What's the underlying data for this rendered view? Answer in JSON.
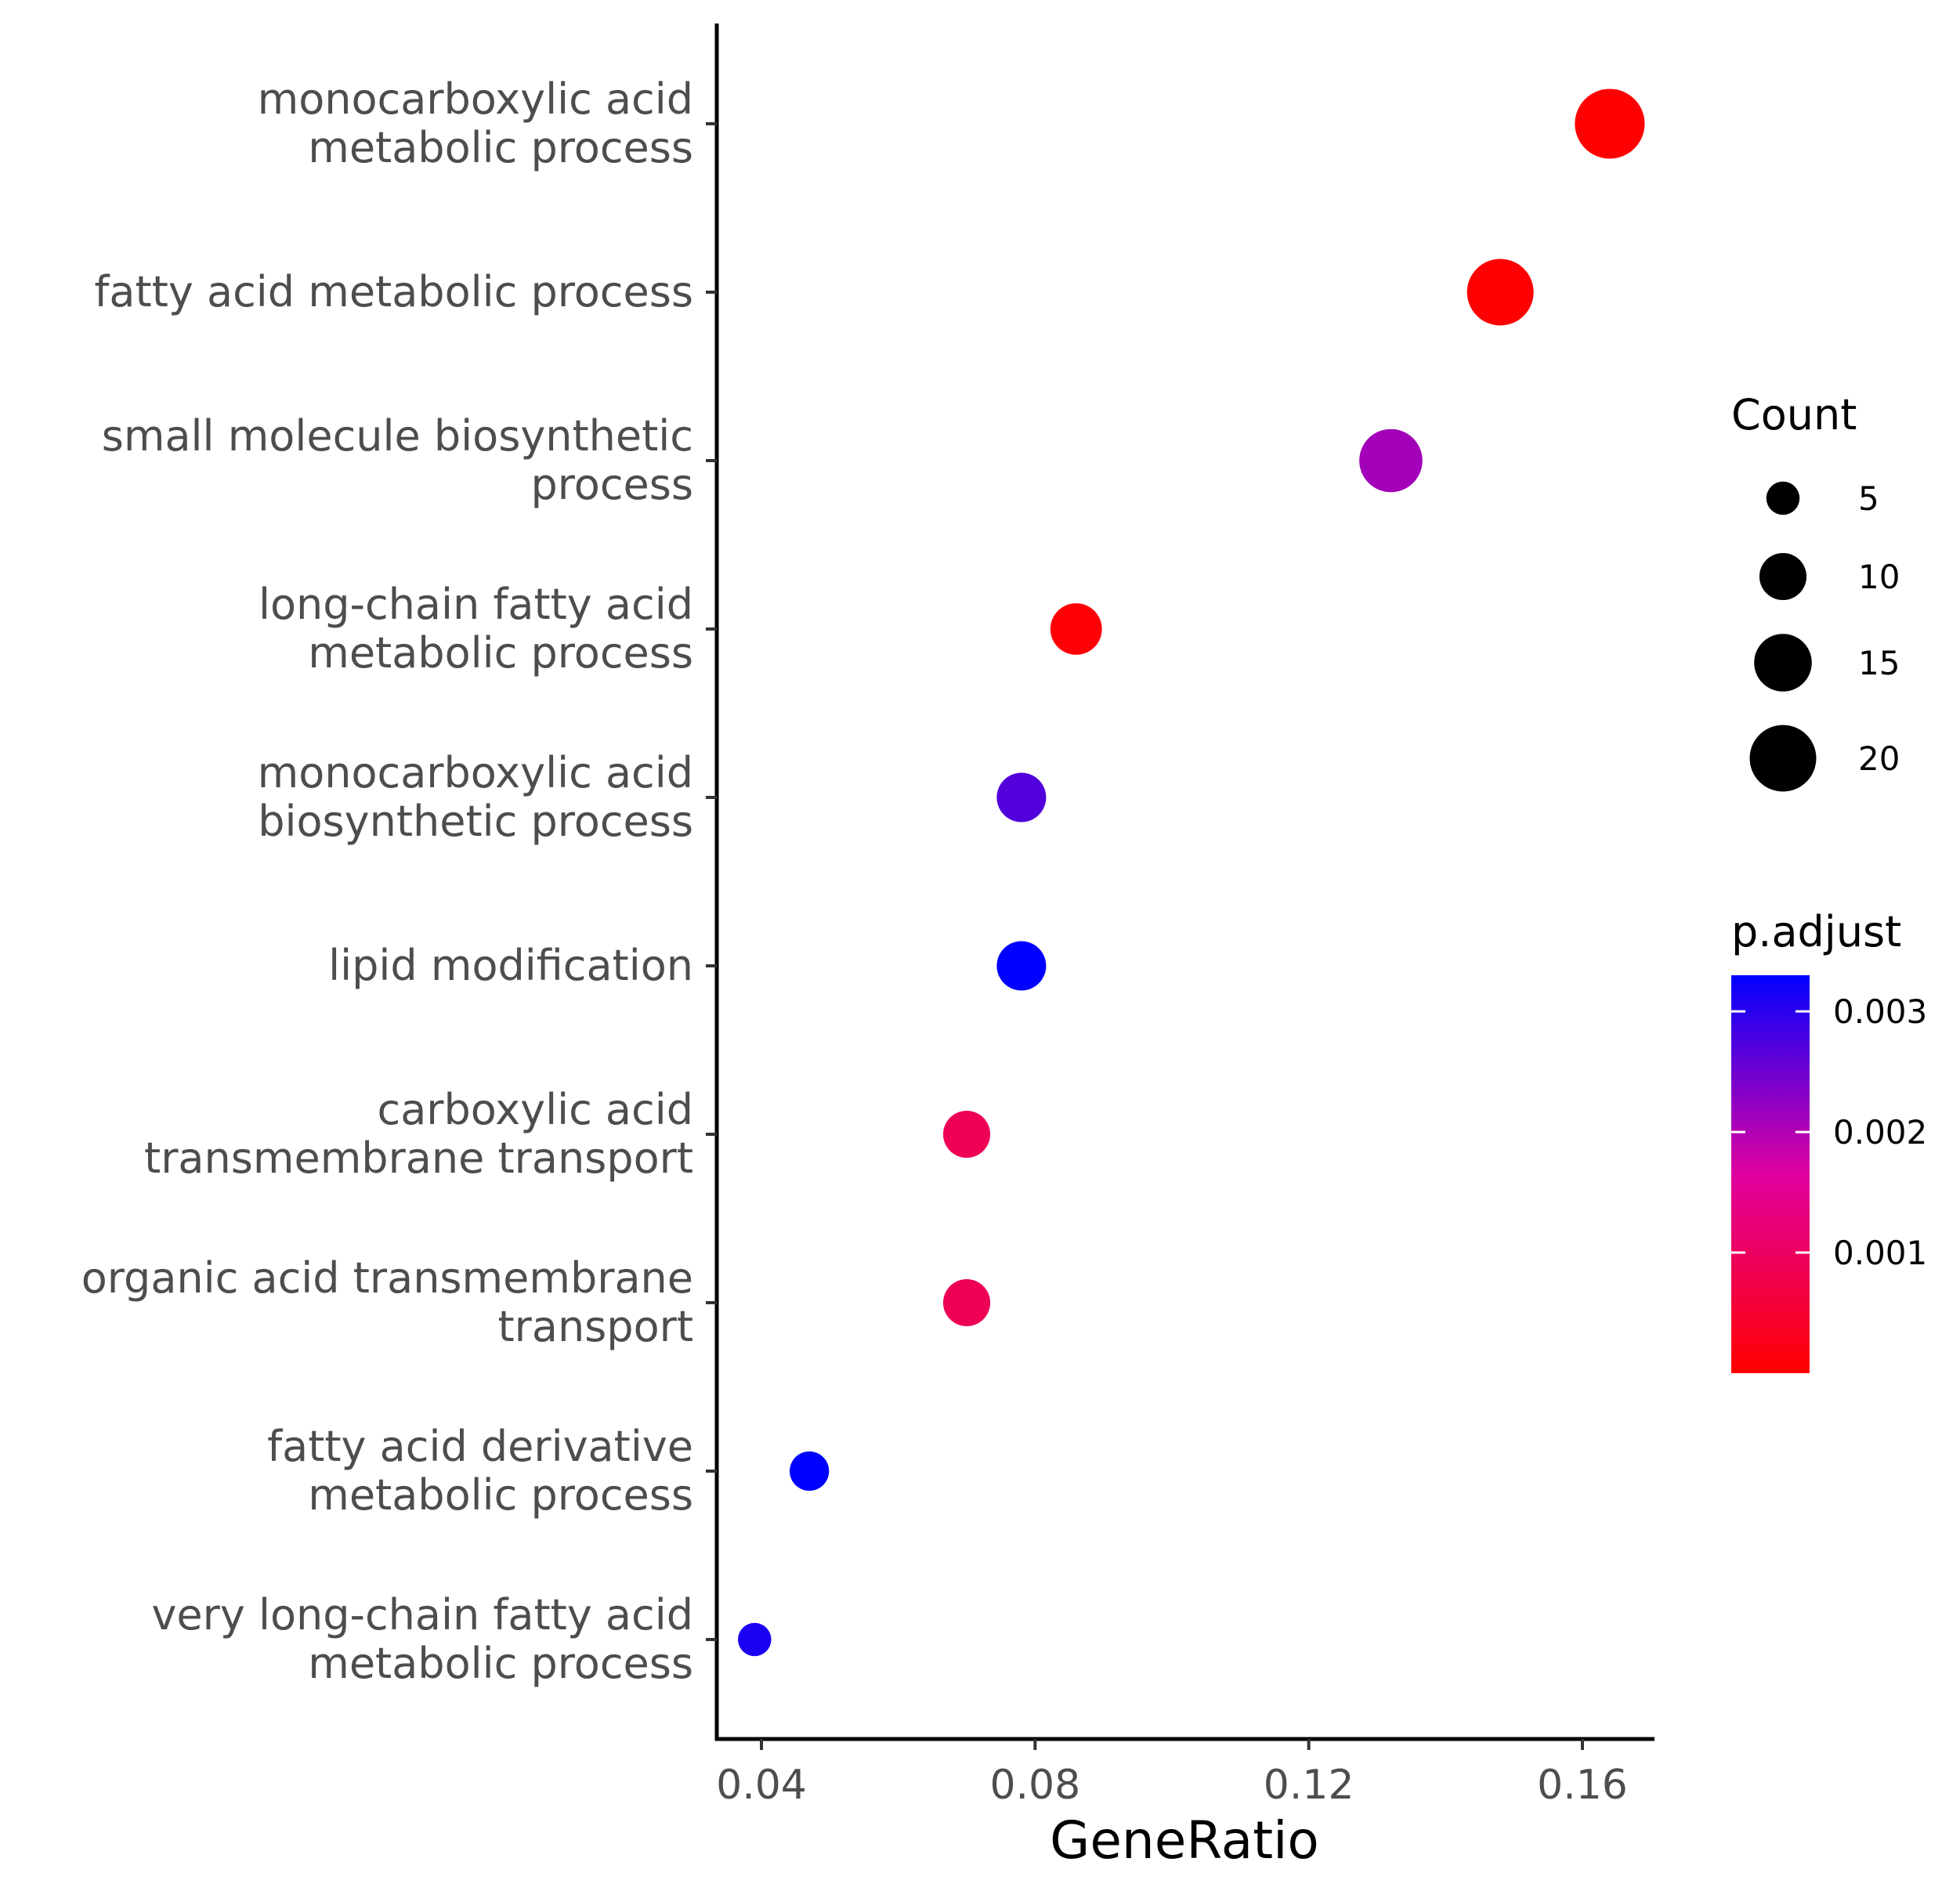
{
  "chart_data": {
    "type": "scatter",
    "xlabel": "GeneRatio",
    "xlim": [
      0.033,
      0.171
    ],
    "xticks": [
      0.04,
      0.08,
      0.12,
      0.16
    ],
    "xtick_labels": [
      "0.04",
      "0.08",
      "0.12",
      "0.16"
    ],
    "points": [
      {
        "label": "monocarboxylic acid\nmetabolic process",
        "gene_ratio": 0.164,
        "count": 22,
        "p_adjust": 2e-05
      },
      {
        "label": "fatty acid metabolic process",
        "gene_ratio": 0.148,
        "count": 20,
        "p_adjust": 2e-05
      },
      {
        "label": "small molecule biosynthetic\nprocess",
        "gene_ratio": 0.132,
        "count": 18,
        "p_adjust": 0.0021
      },
      {
        "label": "long-chain fatty acid\nmetabolic process",
        "gene_ratio": 0.086,
        "count": 12,
        "p_adjust": 5e-05
      },
      {
        "label": "monocarboxylic acid\nbiosynthetic process",
        "gene_ratio": 0.078,
        "count": 11,
        "p_adjust": 0.0027
      },
      {
        "label": "lipid modification",
        "gene_ratio": 0.078,
        "count": 11,
        "p_adjust": 0.0033
      },
      {
        "label": "carboxylic acid\ntransmembrane transport",
        "gene_ratio": 0.07,
        "count": 10,
        "p_adjust": 0.0009
      },
      {
        "label": "organic acid transmembrane\ntransport",
        "gene_ratio": 0.07,
        "count": 10,
        "p_adjust": 0.0009
      },
      {
        "label": "fatty acid derivative\nmetabolic process",
        "gene_ratio": 0.047,
        "count": 7,
        "p_adjust": 0.0033
      },
      {
        "label": "very long-chain fatty acid\nmetabolic process",
        "gene_ratio": 0.039,
        "count": 5,
        "p_adjust": 0.0031
      }
    ],
    "size_legend": {
      "title": "Count",
      "values": [
        5,
        10,
        15,
        20
      ]
    },
    "color_legend": {
      "title": "p.adjust",
      "range": [
        0.0,
        0.0033
      ],
      "ticks": [
        0.001,
        0.002,
        0.003
      ],
      "tick_labels": [
        "0.001",
        "0.002",
        "0.003"
      ],
      "low_color": "#ff0000",
      "high_color": "#0000ff"
    },
    "grid": false,
    "legend_position": "right"
  }
}
